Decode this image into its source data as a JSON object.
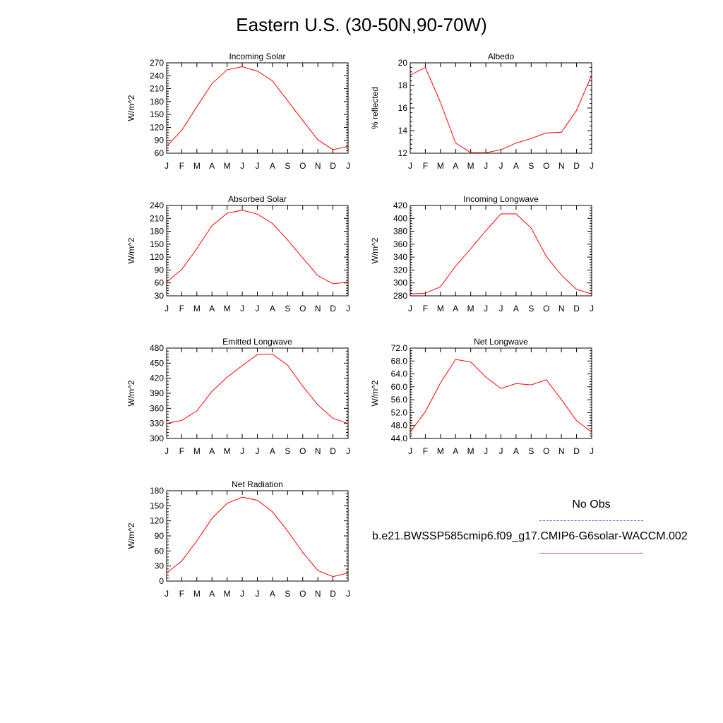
{
  "title": "Eastern U.S. (30-50N,90-70W)",
  "legend": {
    "obs_label": "No Obs",
    "obs_color": "#5555dd",
    "model_label": "b.e21.BWSSP585cmip6.f09_g17.CMIP6-G6solar-WACCM.002",
    "model_color": "#e35555"
  },
  "chart_data": [
    {
      "type": "line",
      "title": "Incoming Solar",
      "ylabel": "W/m^2",
      "categories": [
        "J",
        "F",
        "M",
        "A",
        "M",
        "J",
        "J",
        "A",
        "S",
        "O",
        "N",
        "D",
        "J"
      ],
      "ylim": [
        60,
        270
      ],
      "yticks": [
        "60",
        "90",
        "120",
        "150",
        "180",
        "210",
        "240",
        "270"
      ],
      "series": [
        {
          "color": "#ff0000",
          "values": [
            76,
            113,
            168,
            222,
            254,
            261,
            251,
            228,
            182,
            136,
            91,
            68,
            76
          ]
        }
      ]
    },
    {
      "type": "line",
      "title": "Albedo",
      "ylabel": "% reflected",
      "categories": [
        "J",
        "F",
        "M",
        "A",
        "M",
        "J",
        "J",
        "A",
        "S",
        "O",
        "N",
        "D",
        "J"
      ],
      "ylim": [
        12,
        20
      ],
      "yticks": [
        "12",
        "14",
        "16",
        "18",
        "20"
      ],
      "series": [
        {
          "color": "#ff0000",
          "values": [
            18.9,
            19.6,
            16.5,
            12.9,
            12.05,
            12.05,
            12.3,
            12.9,
            13.3,
            13.8,
            13.85,
            15.8,
            18.9
          ]
        }
      ]
    },
    {
      "type": "line",
      "title": "Absorbed Solar",
      "ylabel": "W/m^2",
      "categories": [
        "J",
        "F",
        "M",
        "A",
        "M",
        "J",
        "J",
        "A",
        "S",
        "O",
        "N",
        "D",
        "J"
      ],
      "ylim": [
        30,
        240
      ],
      "yticks": [
        "30",
        "60",
        "90",
        "120",
        "150",
        "180",
        "210",
        "240"
      ],
      "series": [
        {
          "color": "#ff0000",
          "values": [
            62,
            91,
            140,
            193,
            222,
            229,
            220,
            198,
            160,
            118,
            77,
            58,
            62
          ]
        }
      ]
    },
    {
      "type": "line",
      "title": "Incoming Longwave",
      "ylabel": "W/m^2",
      "categories": [
        "J",
        "F",
        "M",
        "A",
        "M",
        "J",
        "J",
        "A",
        "S",
        "O",
        "N",
        "D",
        "J"
      ],
      "ylim": [
        280,
        420
      ],
      "yticks": [
        "280",
        "300",
        "320",
        "340",
        "360",
        "380",
        "400",
        "420"
      ],
      "series": [
        {
          "color": "#ff0000",
          "values": [
            283,
            284,
            294,
            326,
            353,
            381,
            407,
            407,
            385,
            341,
            312,
            290,
            283
          ]
        }
      ]
    },
    {
      "type": "line",
      "title": "Emitted Longwave",
      "ylabel": "W/m^2",
      "categories": [
        "J",
        "F",
        "M",
        "A",
        "M",
        "J",
        "J",
        "A",
        "S",
        "O",
        "N",
        "D",
        "J"
      ],
      "ylim": [
        300,
        480
      ],
      "yticks": [
        "300",
        "330",
        "360",
        "390",
        "420",
        "450",
        "480"
      ],
      "series": [
        {
          "color": "#ff0000",
          "values": [
            330,
            336,
            355,
            394,
            422,
            445,
            467,
            468,
            446,
            404,
            367,
            340,
            330
          ]
        }
      ]
    },
    {
      "type": "line",
      "title": "Net Longwave",
      "ylabel": "W/m^2",
      "categories": [
        "J",
        "F",
        "M",
        "A",
        "M",
        "J",
        "J",
        "A",
        "S",
        "O",
        "N",
        "D",
        "J"
      ],
      "ylim": [
        44,
        72
      ],
      "yticks": [
        "44.0",
        "48.0",
        "52.0",
        "56.0",
        "60.0",
        "64.0",
        "68.0",
        "72.0"
      ],
      "series": [
        {
          "color": "#ff0000",
          "values": [
            46.0,
            52.3,
            61.2,
            68.5,
            67.7,
            63.0,
            59.5,
            61.0,
            60.6,
            62.2,
            56.0,
            49.5,
            46.0
          ]
        }
      ]
    },
    {
      "type": "line",
      "title": "Net Radiation",
      "ylabel": "W/m^2",
      "categories": [
        "J",
        "F",
        "M",
        "A",
        "M",
        "J",
        "J",
        "A",
        "S",
        "O",
        "N",
        "D",
        "J"
      ],
      "ylim": [
        0,
        180
      ],
      "yticks": [
        "0",
        "30",
        "60",
        "90",
        "120",
        "150",
        "180"
      ],
      "series": [
        {
          "color": "#ff0000",
          "values": [
            16,
            40,
            80,
            125,
            155,
            167,
            161,
            138,
            100,
            57,
            21,
            9,
            16
          ]
        }
      ]
    }
  ]
}
